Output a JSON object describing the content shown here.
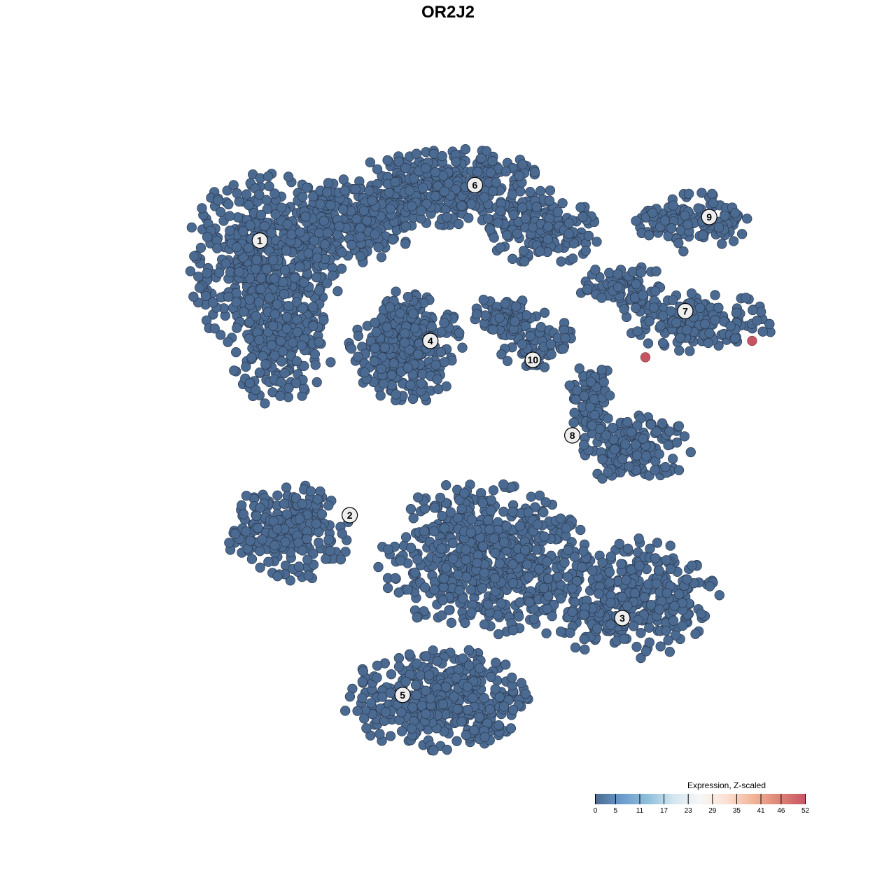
{
  "chart_data": {
    "type": "scatter",
    "title": "OR2J2",
    "xlabel": "",
    "ylabel": "",
    "xlim": [
      -37,
      41
    ],
    "ylim": [
      -38,
      38
    ],
    "grid": false,
    "axes_visible": false,
    "point_color_low": "#4b6a91",
    "point_stroke": "#2b3a50",
    "clusters": [
      {
        "id": "1",
        "label_pos": [
          -22.4,
          24.7
        ],
        "blobs": [
          {
            "c": [
              -22,
              22
            ],
            "r": [
              9,
              11
            ],
            "n": 520
          },
          {
            "c": [
              -20,
              12
            ],
            "r": [
              6,
              7
            ],
            "n": 160
          },
          {
            "c": [
              -12,
              27
            ],
            "r": [
              8,
              5
            ],
            "n": 260
          }
        ]
      },
      {
        "id": "6",
        "label_pos": [
          3.2,
          31.3
        ],
        "blobs": [
          {
            "c": [
              0,
              31
            ],
            "r": [
              12,
              4.5
            ],
            "n": 380
          },
          {
            "c": [
              11,
              26
            ],
            "r": [
              7,
              4
            ],
            "n": 160
          }
        ]
      },
      {
        "id": "4",
        "label_pos": [
          -2.1,
          12.75
        ],
        "blobs": [
          {
            "c": [
              -5,
              12
            ],
            "r": [
              6.5,
              6.5
            ],
            "n": 330
          }
        ]
      },
      {
        "id": "10",
        "label_pos": [
          10.1,
          10.5
        ],
        "blobs": [
          {
            "c": [
              10,
              13
            ],
            "r": [
              4.5,
              3.5
            ],
            "n": 90
          },
          {
            "c": [
              7,
              16
            ],
            "r": [
              5,
              2
            ],
            "n": 60
          }
        ]
      },
      {
        "id": "9",
        "label_pos": [
          31.1,
          27.5
        ],
        "blobs": [
          {
            "c": [
              29,
              27
            ],
            "r": [
              8,
              3.5
            ],
            "n": 140
          }
        ]
      },
      {
        "id": "7",
        "label_pos": [
          28.25,
          16.3
        ],
        "blobs": [
          {
            "c": [
              30,
              15
            ],
            "r": [
              9,
              3.5
            ],
            "n": 170
          },
          {
            "c": [
              21,
              19
            ],
            "r": [
              5,
              3
            ],
            "n": 80
          }
        ]
      },
      {
        "id": "8",
        "label_pos": [
          14.8,
          1.5
        ],
        "blobs": [
          {
            "c": [
              22,
              0
            ],
            "r": [
              7,
              4
            ],
            "n": 170
          },
          {
            "c": [
              17,
              6
            ],
            "r": [
              3,
              4
            ],
            "n": 80
          }
        ]
      },
      {
        "id": "2",
        "label_pos": [
          -11.7,
          -8
        ],
        "blobs": [
          {
            "c": [
              -19,
              -10
            ],
            "r": [
              7,
              6
            ],
            "n": 230
          }
        ]
      },
      {
        "id": "3",
        "label_pos": [
          20.75,
          -20.25
        ],
        "blobs": [
          {
            "c": [
              21,
              -18
            ],
            "r": [
              11,
              7
            ],
            "n": 380
          }
        ]
      },
      {
        "id": "5",
        "label_pos": [
          -5.4,
          -29.4
        ],
        "blobs": [
          {
            "c": [
              -1,
              -30
            ],
            "r": [
              11,
              6
            ],
            "n": 420
          },
          {
            "c": [
              4,
              -13
            ],
            "r": [
              12,
              9
            ],
            "n": 620
          }
        ]
      }
    ],
    "highlighted_points": [
      {
        "x": 23.5,
        "y": 10.8,
        "value": 52
      },
      {
        "x": 36.2,
        "y": 12.75,
        "value": 52
      }
    ],
    "colorbar": {
      "title": "Expression, Z-scaled",
      "ticks": [
        0,
        5,
        11,
        17,
        23,
        29,
        35,
        41,
        46,
        52
      ],
      "range": [
        0,
        52
      ],
      "colors": [
        "#4b6a91",
        "#6a9bcc",
        "#8fbfdb",
        "#d4e6f0",
        "#f7f7f7",
        "#fbe0d3",
        "#f2b59a",
        "#de8375",
        "#c65564"
      ]
    }
  }
}
